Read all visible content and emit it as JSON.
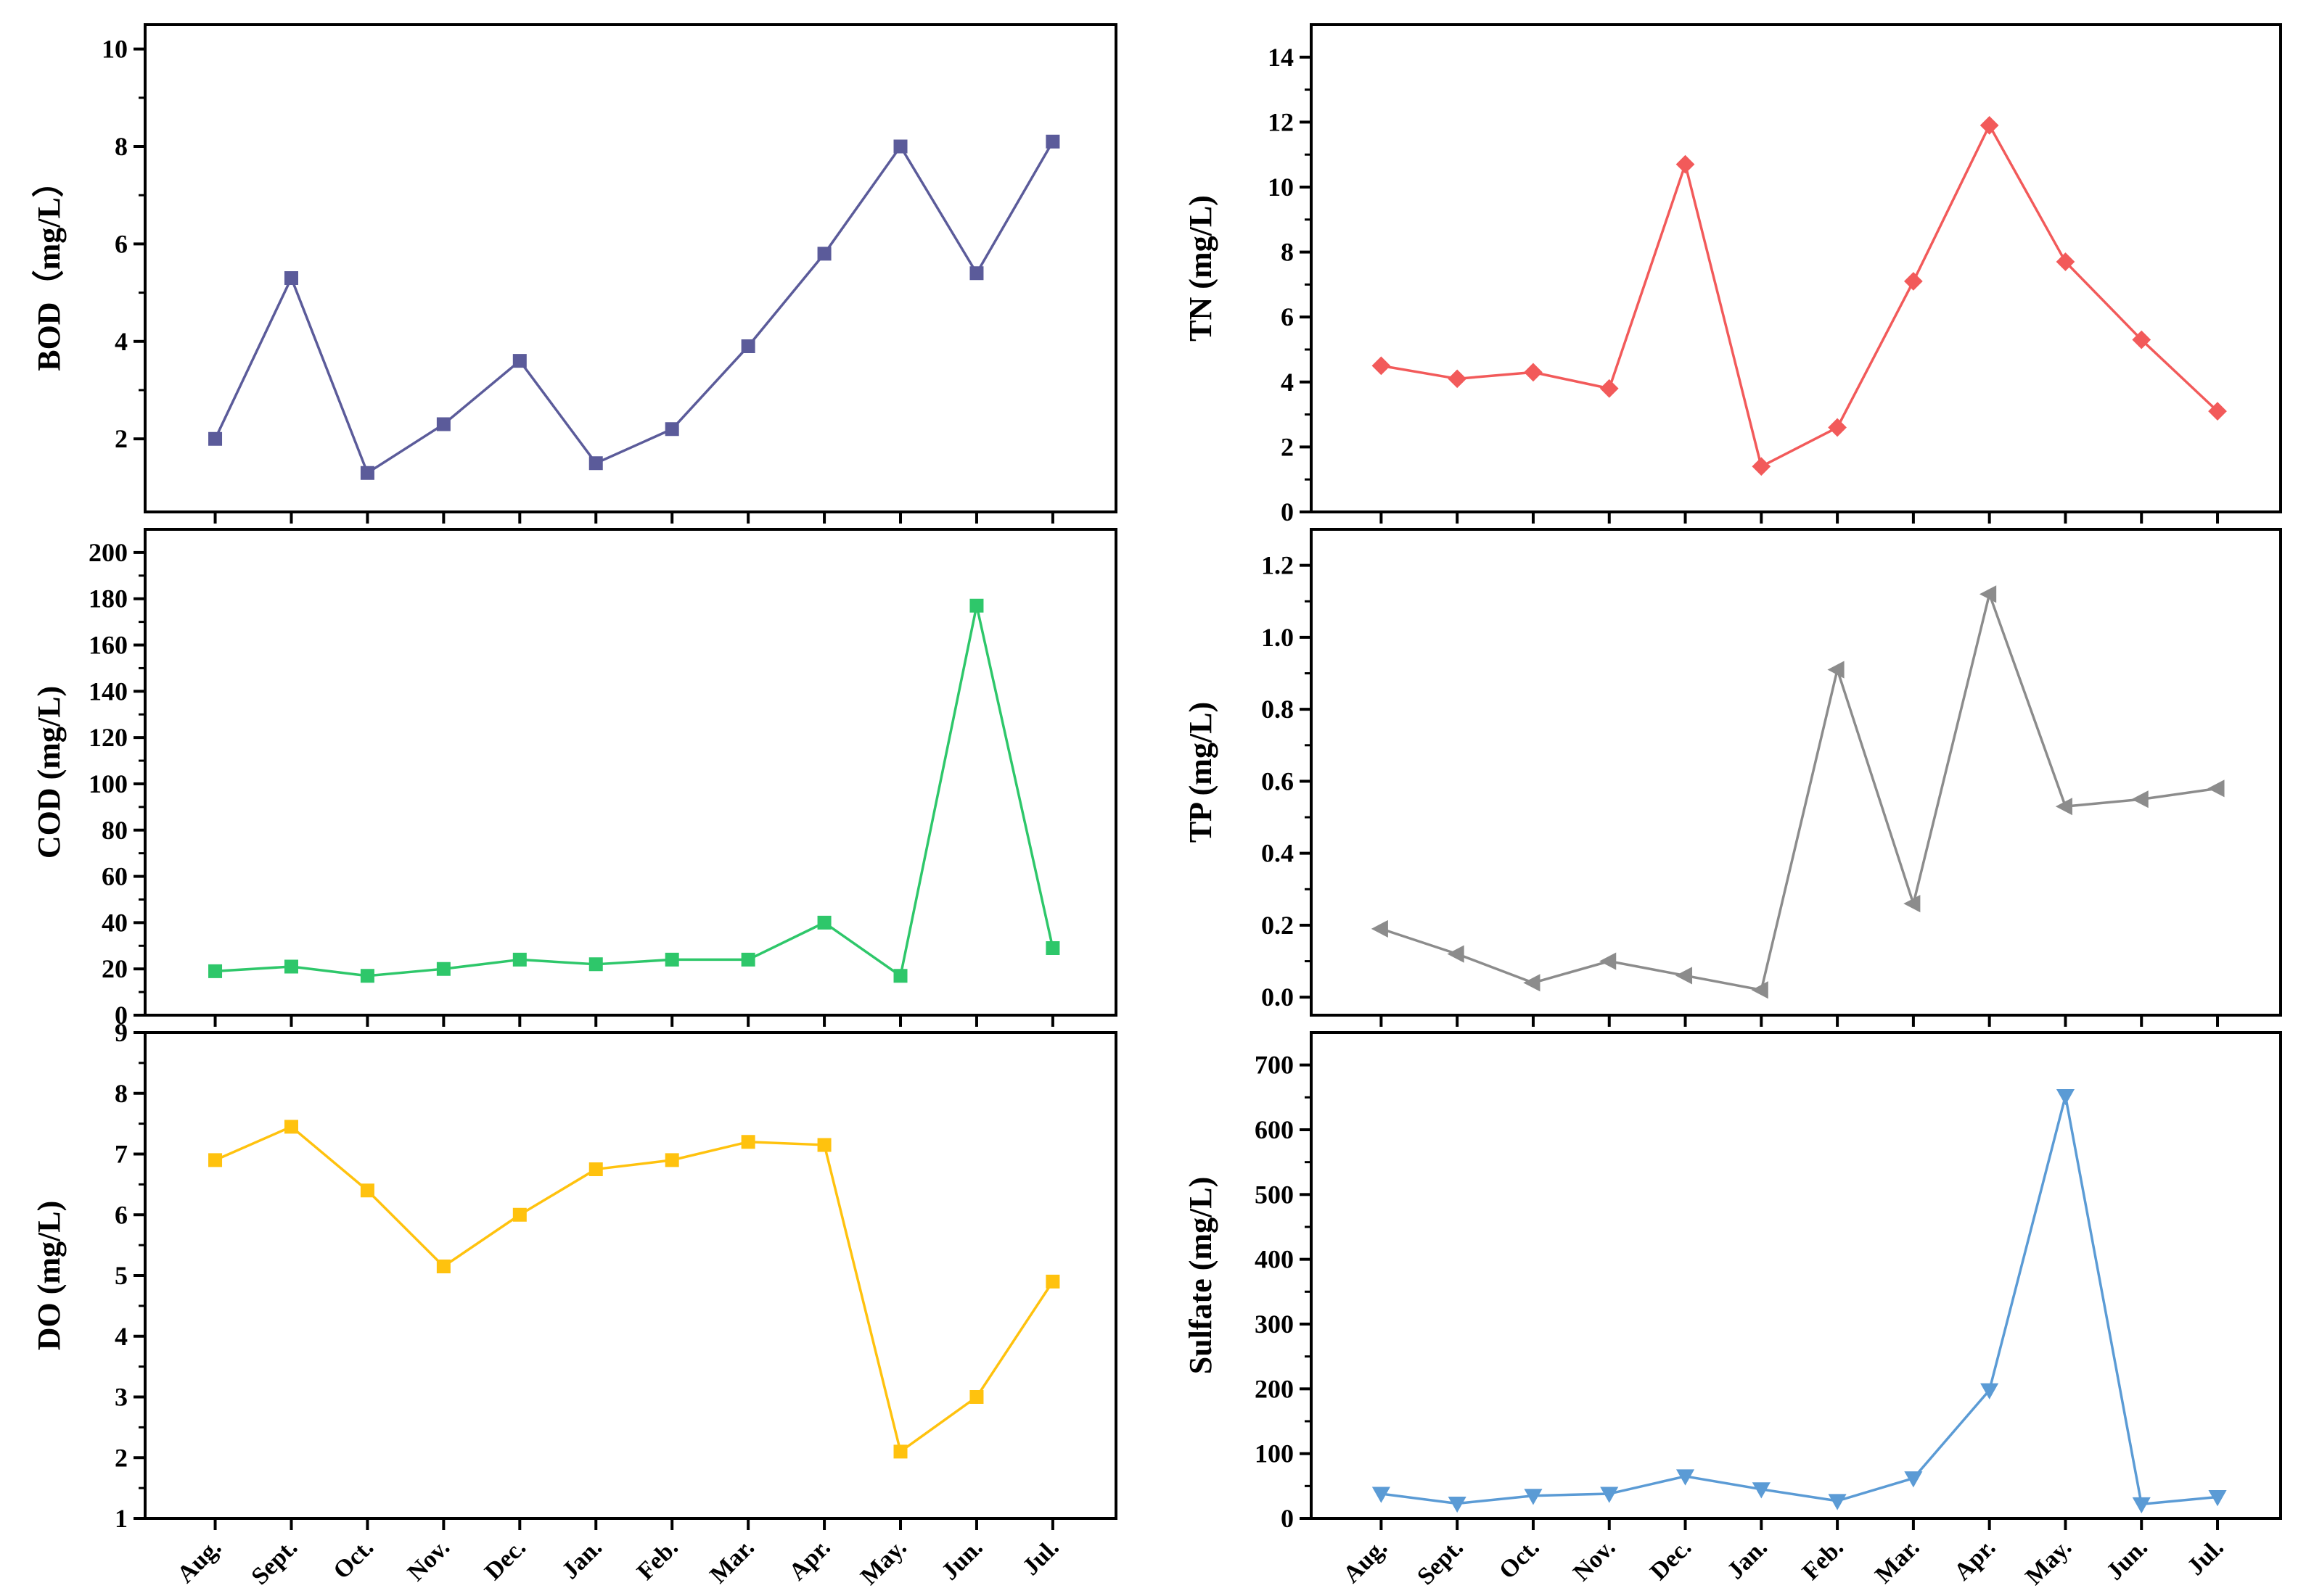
{
  "months": [
    "Aug.",
    "Sept.",
    "Oct.",
    "Nov.",
    "Dec.",
    "Jan.",
    "Feb.",
    "Mar.",
    "Apr.",
    "May.",
    "Jun.",
    "Jul."
  ],
  "chart_data": [
    {
      "id": "bod",
      "type": "line",
      "ylabel": "BOD（mg/L）",
      "ylim": [
        0.5,
        10.5
      ],
      "yticks": [
        2,
        4,
        6,
        8,
        10
      ],
      "marker": "square",
      "color": "#5B5B9A",
      "series": [
        {
          "name": "BOD",
          "values": [
            2.0,
            5.3,
            1.3,
            2.3,
            3.6,
            1.5,
            2.2,
            3.9,
            5.8,
            8.0,
            5.4,
            8.1
          ]
        }
      ]
    },
    {
      "id": "tn",
      "type": "line",
      "ylabel": "TN (mg/L)",
      "ylim": [
        0,
        15
      ],
      "yticks": [
        0,
        2,
        4,
        6,
        8,
        10,
        12,
        14
      ],
      "marker": "diamond",
      "color": "#F25A5A",
      "series": [
        {
          "name": "TN",
          "values": [
            4.5,
            4.1,
            4.3,
            3.8,
            10.7,
            1.4,
            2.6,
            7.1,
            11.9,
            7.7,
            5.3,
            3.1
          ]
        }
      ]
    },
    {
      "id": "cod",
      "type": "line",
      "ylabel": "COD (mg/L)",
      "ylim": [
        0,
        210
      ],
      "yticks": [
        0,
        20,
        40,
        60,
        80,
        100,
        120,
        140,
        160,
        180,
        200
      ],
      "marker": "square",
      "color": "#2EC76A",
      "series": [
        {
          "name": "COD",
          "values": [
            19,
            21,
            17,
            20,
            24,
            22,
            24,
            24,
            40,
            17,
            177,
            29
          ]
        }
      ]
    },
    {
      "id": "tp",
      "type": "line",
      "ylabel": "TP (mg/L)",
      "ylim": [
        -0.05,
        1.3
      ],
      "yticks": [
        0.0,
        0.2,
        0.4,
        0.6,
        0.8,
        1.0,
        1.2
      ],
      "marker": "triangle-left",
      "color": "#8C8C8C",
      "series": [
        {
          "name": "TP",
          "values": [
            0.19,
            0.12,
            0.04,
            0.1,
            0.06,
            0.02,
            0.91,
            0.26,
            1.12,
            0.53,
            0.55,
            0.58
          ]
        }
      ]
    },
    {
      "id": "do",
      "type": "line",
      "ylabel": "DO (mg/L)",
      "ylim": [
        1,
        9
      ],
      "yticks": [
        1,
        2,
        3,
        4,
        5,
        6,
        7,
        8,
        9
      ],
      "marker": "square",
      "color": "#FFC20E",
      "series": [
        {
          "name": "DO",
          "values": [
            6.9,
            7.45,
            6.4,
            5.15,
            6.0,
            6.75,
            6.9,
            7.2,
            7.15,
            2.1,
            3.0,
            4.9
          ]
        }
      ]
    },
    {
      "id": "sulfate",
      "type": "line",
      "ylabel": "Sulfate (mg/L)",
      "ylim": [
        0,
        750
      ],
      "yticks": [
        0,
        100,
        200,
        300,
        400,
        500,
        600,
        700
      ],
      "marker": "triangle-down",
      "color": "#5B9BD5",
      "series": [
        {
          "name": "Sulfate",
          "values": [
            38,
            23,
            35,
            38,
            65,
            45,
            27,
            62,
            198,
            652,
            22,
            33
          ]
        }
      ]
    }
  ]
}
